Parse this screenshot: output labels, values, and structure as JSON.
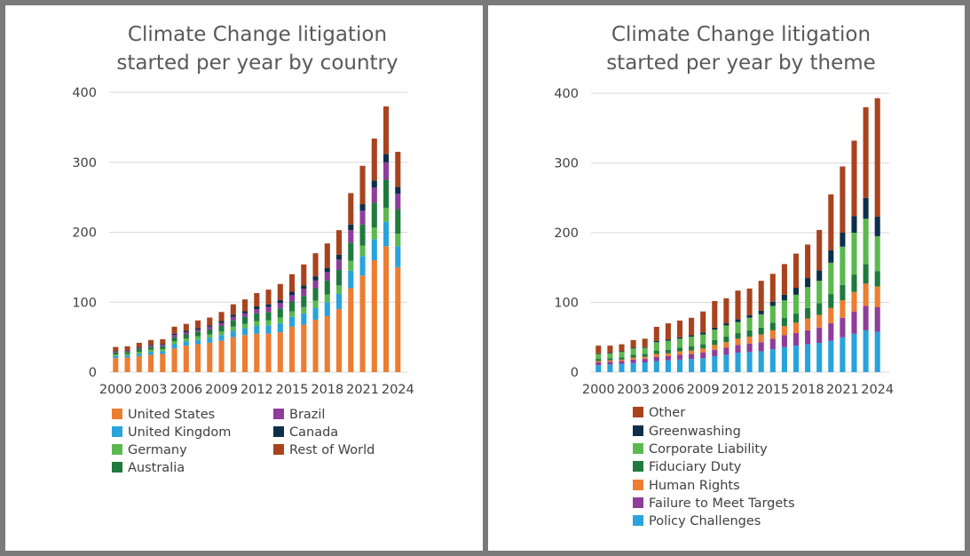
{
  "chart_data": [
    {
      "type": "bar",
      "stacked": true,
      "title": "Climate Change litigation started per year by country",
      "title_lines": [
        "Climate Change litigation",
        "started per year by country"
      ],
      "ylim": [
        0,
        400
      ],
      "y_ticks": [
        0,
        100,
        200,
        300,
        400
      ],
      "grid": true,
      "legend_position": "bottom",
      "categories": [
        "2000",
        "2001",
        "2002",
        "2003",
        "2004",
        "2005",
        "2006",
        "2007",
        "2008",
        "2009",
        "2010",
        "2011",
        "2012",
        "2013",
        "2014",
        "2015",
        "2016",
        "2017",
        "2018",
        "2019",
        "2020",
        "2021",
        "2022",
        "2023",
        "2024"
      ],
      "x_tick_labels": [
        "2000",
        "2003",
        "2006",
        "2009",
        "2012",
        "2015",
        "2018",
        "2021",
        "2024"
      ],
      "series": [
        {
          "name": "United States",
          "color": "#ED7D31",
          "values": [
            20,
            21,
            23,
            25,
            26,
            34,
            38,
            40,
            42,
            45,
            50,
            53,
            55,
            55,
            57,
            65,
            68,
            75,
            80,
            90,
            120,
            138,
            160,
            180,
            150
          ]
        },
        {
          "name": "United Kingdom",
          "color": "#29A3DB",
          "values": [
            3,
            3,
            3,
            4,
            4,
            6,
            6,
            6,
            7,
            8,
            9,
            10,
            11,
            12,
            13,
            14,
            16,
            17,
            20,
            22,
            25,
            28,
            30,
            35,
            30
          ]
        },
        {
          "name": "Germany",
          "color": "#5BB94E",
          "values": [
            2,
            2,
            3,
            3,
            3,
            4,
            4,
            5,
            5,
            5,
            6,
            6,
            7,
            7,
            8,
            8,
            9,
            10,
            11,
            12,
            14,
            15,
            17,
            20,
            18
          ]
        },
        {
          "name": "Australia",
          "color": "#1E7A3D",
          "values": [
            3,
            3,
            4,
            4,
            4,
            6,
            6,
            7,
            7,
            8,
            9,
            10,
            11,
            12,
            13,
            14,
            16,
            18,
            20,
            22,
            26,
            30,
            35,
            40,
            35
          ]
        },
        {
          "name": "Brazil",
          "color": "#8E3D9A",
          "values": [
            1,
            1,
            1,
            2,
            2,
            3,
            3,
            3,
            4,
            4,
            5,
            5,
            6,
            7,
            8,
            9,
            10,
            11,
            12,
            15,
            18,
            20,
            22,
            25,
            22
          ]
        },
        {
          "name": "Canada",
          "color": "#0D2F4A",
          "values": [
            1,
            1,
            1,
            1,
            1,
            2,
            2,
            2,
            2,
            3,
            3,
            3,
            4,
            4,
            4,
            5,
            5,
            6,
            6,
            7,
            8,
            9,
            10,
            12,
            10
          ]
        },
        {
          "name": "Rest of World",
          "color": "#A9431E",
          "values": [
            6,
            6,
            7,
            7,
            7,
            10,
            10,
            11,
            11,
            13,
            15,
            17,
            19,
            21,
            23,
            25,
            30,
            33,
            35,
            35,
            45,
            55,
            60,
            68,
            50
          ]
        }
      ]
    },
    {
      "type": "bar",
      "stacked": true,
      "title": "Climate Change litigation started per year by theme",
      "title_lines": [
        "Climate Change litigation",
        "started per year by theme"
      ],
      "ylim": [
        0,
        400
      ],
      "y_ticks": [
        0,
        100,
        200,
        300,
        400
      ],
      "grid": true,
      "legend_position": "bottom",
      "categories": [
        "2000",
        "2001",
        "2002",
        "2003",
        "2004",
        "2005",
        "2006",
        "2007",
        "2008",
        "2009",
        "2010",
        "2011",
        "2012",
        "2013",
        "2014",
        "2015",
        "2016",
        "2017",
        "2018",
        "2019",
        "2020",
        "2021",
        "2022",
        "2023",
        "2024"
      ],
      "x_tick_labels": [
        "2000",
        "2003",
        "2006",
        "2009",
        "2012",
        "2015",
        "2018",
        "2021",
        "2024"
      ],
      "series": [
        {
          "name": "Policy Challenges",
          "color": "#29A3DB",
          "values": [
            10,
            11,
            12,
            13,
            14,
            16,
            17,
            18,
            19,
            20,
            23,
            25,
            28,
            29,
            30,
            33,
            36,
            38,
            40,
            42,
            45,
            50,
            55,
            60,
            58
          ]
        },
        {
          "name": "Failure to Meet Targets",
          "color": "#8E3D9A",
          "values": [
            4,
            4,
            4,
            5,
            5,
            6,
            6,
            7,
            7,
            8,
            9,
            10,
            11,
            12,
            13,
            15,
            17,
            18,
            20,
            22,
            25,
            28,
            32,
            35,
            35
          ]
        },
        {
          "name": "Human Rights",
          "color": "#ED7D31",
          "values": [
            2,
            2,
            2,
            3,
            3,
            4,
            4,
            5,
            5,
            6,
            7,
            8,
            9,
            10,
            11,
            12,
            13,
            15,
            17,
            18,
            22,
            25,
            28,
            32,
            30
          ]
        },
        {
          "name": "Fiduciary Duty",
          "color": "#1E7A3D",
          "values": [
            3,
            3,
            3,
            4,
            4,
            5,
            5,
            5,
            6,
            6,
            7,
            8,
            8,
            9,
            10,
            11,
            12,
            13,
            15,
            17,
            20,
            22,
            25,
            28,
            22
          ]
        },
        {
          "name": "Corporate Liability",
          "color": "#5BB94E",
          "values": [
            7,
            7,
            8,
            9,
            9,
            12,
            13,
            13,
            14,
            14,
            15,
            16,
            16,
            18,
            19,
            24,
            25,
            27,
            30,
            32,
            45,
            55,
            60,
            65,
            50
          ]
        },
        {
          "name": "Greenwashing",
          "color": "#0D2F4A",
          "values": [
            1,
            1,
            1,
            1,
            1,
            2,
            2,
            2,
            2,
            3,
            3,
            3,
            4,
            4,
            5,
            6,
            8,
            10,
            13,
            15,
            18,
            20,
            24,
            30,
            28
          ]
        },
        {
          "name": "Other",
          "color": "#A9431E",
          "values": [
            11,
            10,
            10,
            11,
            12,
            20,
            23,
            24,
            25,
            30,
            38,
            36,
            41,
            38,
            43,
            40,
            44,
            49,
            48,
            58,
            80,
            95,
            108,
            130,
            170
          ]
        }
      ]
    }
  ]
}
